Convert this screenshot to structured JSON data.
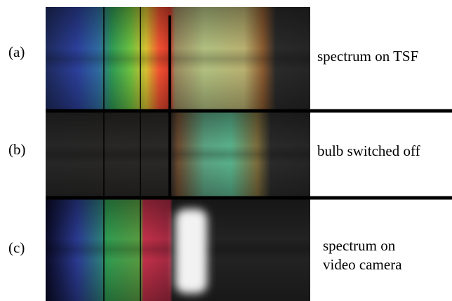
{
  "panels": [
    {
      "label": "(a)",
      "caption": [
        "spectrum on TSF"
      ]
    },
    {
      "label": "(b)",
      "caption": [
        "bulb switched off"
      ]
    },
    {
      "label": "(c)",
      "caption": [
        "spectrum on",
        "video camera"
      ]
    }
  ]
}
